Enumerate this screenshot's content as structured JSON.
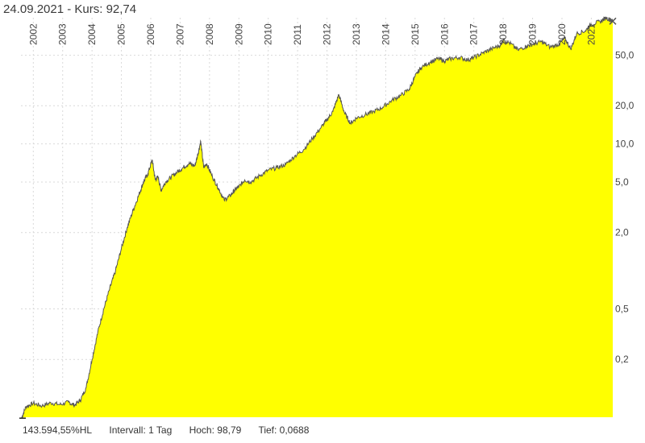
{
  "header": {
    "title": "24.09.2021  - Kurs: 92,74"
  },
  "footer": {
    "hl": "143.594,55%HL",
    "interval": "Intervall: 1 Tag",
    "high": "Hoch:  98,79",
    "low": "Tief: 0,0688"
  },
  "colors": {
    "area_fill": "#ffff00",
    "line": "#555555",
    "grid": "#d9d9d9",
    "marker": "#555555"
  },
  "chart_data": {
    "type": "area",
    "title": "24.09.2021  - Kurs: 92,74",
    "xlabel": "",
    "ylabel": "",
    "y_scale": "log",
    "grid": true,
    "legend": "none",
    "xlim": [
      2001.58,
      2021.73
    ],
    "ylim": [
      0.07,
      98.79
    ],
    "x_ticks": [
      "2002",
      "2003",
      "2004",
      "2005",
      "2006",
      "2007",
      "2008",
      "2009",
      "2010",
      "2011",
      "2012",
      "2013",
      "2014",
      "2015",
      "2016",
      "2017",
      "2018",
      "2019",
      "2020",
      "2021"
    ],
    "x_tick_positions": [
      2002,
      2003,
      2004,
      2005,
      2006,
      2007,
      2008,
      2009,
      2010,
      2011,
      2012,
      2013,
      2014,
      2015,
      2016,
      2017,
      2018,
      2019,
      2020,
      2021
    ],
    "y_ticks": [
      "50,0",
      "20,0",
      "10,0",
      "5,0",
      "2,0",
      "0,5",
      "0,2"
    ],
    "y_tick_values": [
      50,
      20,
      10,
      5,
      2,
      0.5,
      0.2
    ],
    "series": [
      {
        "x": [
          2001.6,
          2001.75,
          2002.0,
          2002.3,
          2002.6,
          2002.9,
          2003.2,
          2003.4,
          2003.6,
          2003.8,
          2004.0,
          2004.2,
          2004.4,
          2004.6,
          2004.8,
          2005.0,
          2005.2,
          2005.4,
          2005.6,
          2005.75,
          2005.9,
          2006.05,
          2006.15,
          2006.25,
          2006.35,
          2006.5,
          2006.7,
          2006.9,
          2007.1,
          2007.3,
          2007.5,
          2007.6,
          2007.7,
          2007.8,
          2007.9,
          2008.1,
          2008.3,
          2008.5,
          2008.7,
          2008.85,
          2009.0,
          2009.2,
          2009.4,
          2009.7,
          2010.0,
          2010.3,
          2010.6,
          2010.9,
          2011.2,
          2011.5,
          2011.8,
          2012.0,
          2012.2,
          2012.4,
          2012.6,
          2012.8,
          2013.0,
          2013.3,
          2013.6,
          2013.9,
          2014.2,
          2014.5,
          2014.8,
          2015.0,
          2015.2,
          2015.5,
          2015.8,
          2016.0,
          2016.2,
          2016.5,
          2016.8,
          2017.0,
          2017.3,
          2017.6,
          2017.9,
          2018.0,
          2018.2,
          2018.5,
          2018.8,
          2019.0,
          2019.3,
          2019.6,
          2019.9,
          2020.1,
          2020.3,
          2020.5,
          2020.8,
          2021.0,
          2021.3,
          2021.5,
          2021.73
        ],
        "values": [
          0.0688,
          0.085,
          0.09,
          0.086,
          0.091,
          0.088,
          0.092,
          0.087,
          0.095,
          0.12,
          0.2,
          0.33,
          0.5,
          0.72,
          1.0,
          1.5,
          2.2,
          3.0,
          4.0,
          5.0,
          5.8,
          7.5,
          5.2,
          5.5,
          4.3,
          5.0,
          5.5,
          6.0,
          6.5,
          7.0,
          6.7,
          8.2,
          10.5,
          6.5,
          7.0,
          5.5,
          4.5,
          3.6,
          3.9,
          4.3,
          4.6,
          5.2,
          5.0,
          5.6,
          6.2,
          6.5,
          6.9,
          8.0,
          9.0,
          11.0,
          13.5,
          15.5,
          18.0,
          24.5,
          17.5,
          14.5,
          16.0,
          17.0,
          18.0,
          19.5,
          22.0,
          24.0,
          27.0,
          34.0,
          40.0,
          44.0,
          47.0,
          45.0,
          47.0,
          48.0,
          46.0,
          48.0,
          52.0,
          56.0,
          60.0,
          66.0,
          63.0,
          55.0,
          59.0,
          61.0,
          64.0,
          58.0,
          61.0,
          68.0,
          56.0,
          74.0,
          78.0,
          88.0,
          92.0,
          98.79,
          92.74
        ]
      }
    ]
  }
}
